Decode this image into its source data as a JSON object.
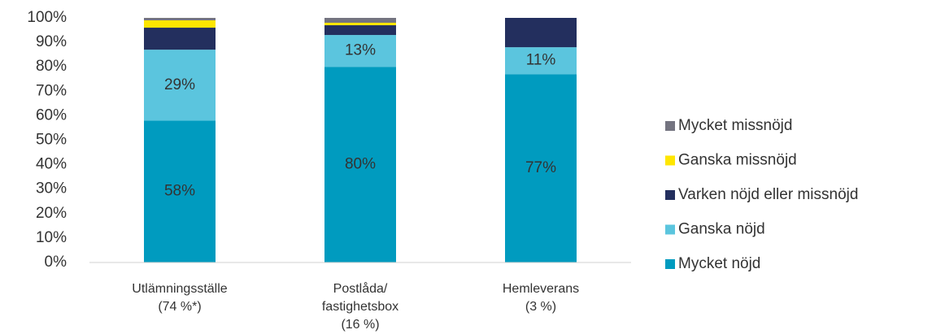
{
  "chart_data": {
    "type": "stacked_bar",
    "categories": [
      [
        "Utlämningsställe",
        "(74 %*)"
      ],
      [
        "Postlåda/",
        "fastighetsbox",
        "(16 %)"
      ],
      [
        "Hemleverans",
        "(3 %)"
      ]
    ],
    "series": [
      {
        "name": "Mycket nöjd",
        "color": "#009bbf",
        "values": [
          58,
          80,
          77
        ],
        "value_labels": [
          "58%",
          "80%",
          "77%"
        ]
      },
      {
        "name": "Ganska nöjd",
        "color": "#5bc5de",
        "values": [
          29,
          13,
          11
        ],
        "value_labels": [
          "29%",
          "13%",
          "11%"
        ]
      },
      {
        "name": "Varken nöjd eller missnöjd",
        "color": "#232f5e",
        "values": [
          9,
          4,
          12
        ]
      },
      {
        "name": "Ganska missnöjd",
        "color": "#ffe600",
        "values": [
          3,
          1,
          0
        ]
      },
      {
        "name": "Mycket missnöjd",
        "color": "#747480",
        "values": [
          1,
          2,
          0
        ]
      }
    ],
    "ylim": [
      0,
      100
    ],
    "yticks": [
      {
        "value": 0,
        "label": "0%"
      },
      {
        "value": 10,
        "label": "10%"
      },
      {
        "value": 20,
        "label": "20%"
      },
      {
        "value": 30,
        "label": "30%"
      },
      {
        "value": 40,
        "label": "40%"
      },
      {
        "value": 50,
        "label": "50%"
      },
      {
        "value": 60,
        "label": "60%"
      },
      {
        "value": 70,
        "label": "70%"
      },
      {
        "value": 80,
        "label": "80%"
      },
      {
        "value": 90,
        "label": "90%"
      },
      {
        "value": 100,
        "label": "100%"
      }
    ],
    "legend": "right"
  }
}
